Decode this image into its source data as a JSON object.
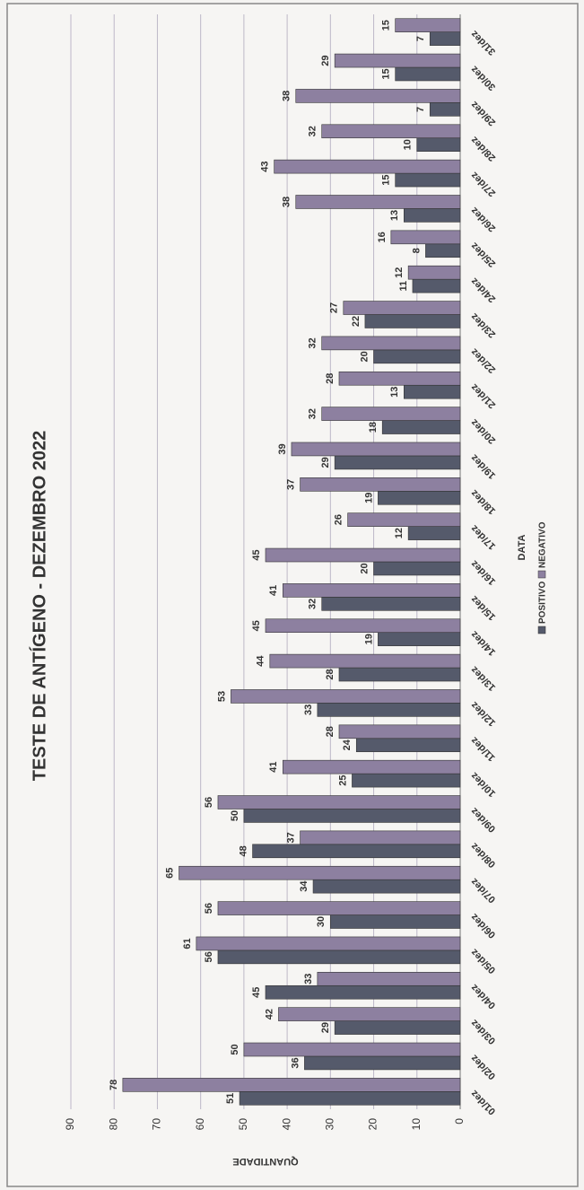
{
  "chart_data": {
    "type": "bar",
    "title": "TESTE DE ANTÍGENO - DEZEMBRO 2022",
    "x_label": "DATA",
    "y_label": "QUANTIDADE",
    "categories": [
      "01/dez",
      "02/dez",
      "03/dez",
      "04/dez",
      "05/dez",
      "06/dez",
      "07/dez",
      "08/dez",
      "09/dez",
      "10/dez",
      "11/dez",
      "12/dez",
      "13/dez",
      "14/dez",
      "15/dez",
      "16/dez",
      "17/dez",
      "18/dez",
      "19/dez",
      "20/dez",
      "21/dez",
      "22/dez",
      "23/dez",
      "24/dez",
      "25/dez",
      "26/dez",
      "27/dez",
      "28/dez",
      "29/dez",
      "30/dez",
      "31/dez"
    ],
    "series": [
      {
        "name": "POSITIVO",
        "color": "#555a6b",
        "values": [
          51,
          36,
          29,
          45,
          56,
          30,
          34,
          48,
          50,
          25,
          24,
          33,
          28,
          19,
          32,
          20,
          12,
          19,
          29,
          18,
          13,
          20,
          22,
          11,
          8,
          13,
          15,
          10,
          7,
          15,
          7
        ]
      },
      {
        "name": "NEGATIVO",
        "color": "#8d80a0",
        "values": [
          78,
          50,
          42,
          33,
          61,
          56,
          65,
          37,
          56,
          41,
          28,
          53,
          44,
          45,
          41,
          45,
          26,
          37,
          39,
          32,
          28,
          32,
          27,
          12,
          16,
          38,
          43,
          32,
          38,
          29,
          15
        ]
      }
    ],
    "ylim": [
      0,
      90
    ],
    "yticks": [
      0,
      10,
      20,
      30,
      40,
      50,
      60,
      70,
      80,
      90
    ],
    "grid": true,
    "legend": "bottom"
  }
}
